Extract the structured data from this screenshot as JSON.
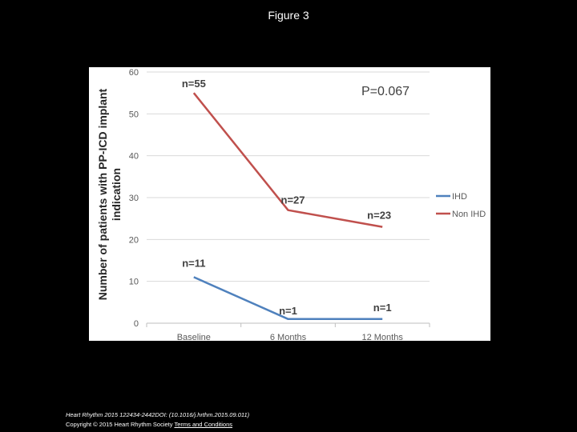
{
  "slide": {
    "title": "Figure 3",
    "footer_journal": "Heart Rhythm 2015 122434-2442DOI: (10.1016/j.hrthm.2015.09.011)",
    "footer_copyright": "Copyright © 2015 Heart Rhythm Society",
    "footer_link": "Terms and Conditions"
  },
  "chart_data": {
    "type": "line",
    "title": "",
    "xlabel": "",
    "ylabel": "Number of patients with PP-ICD implant indication",
    "categories": [
      "Baseline",
      "6 Months",
      "12 Months"
    ],
    "ylim": [
      0,
      60
    ],
    "yticks": [
      0,
      10,
      20,
      30,
      40,
      50,
      60
    ],
    "grid": true,
    "legend_position": "right",
    "annotation": "P=0.067",
    "series": [
      {
        "name": "IHD",
        "values": [
          11,
          1,
          1
        ],
        "color": "#4f81bd",
        "labels": [
          "n=11",
          "n=1",
          "n=1"
        ]
      },
      {
        "name": "Non IHD",
        "values": [
          55,
          27,
          23
        ],
        "color": "#c0504d",
        "labels": [
          "n=55",
          "n=27",
          "n=23"
        ]
      }
    ]
  }
}
